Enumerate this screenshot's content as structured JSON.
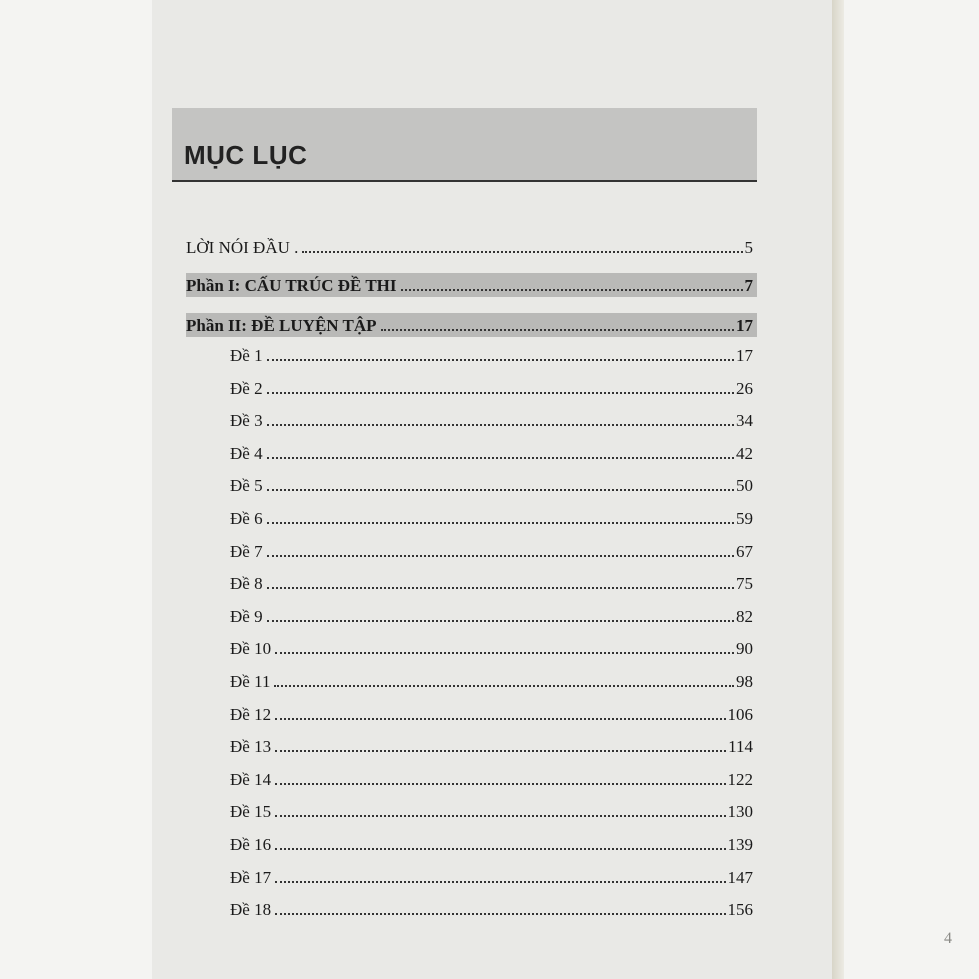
{
  "header": {
    "title": "MỤC LỤC"
  },
  "toc": {
    "entries": [
      {
        "label": "LỜI NÓI ĐẦU .",
        "page": "5"
      },
      {
        "label": "Phần I: CẤU TRÚC ĐỀ THI",
        "page": "7"
      },
      {
        "label": "Phần II: ĐỀ LUYỆN TẬP",
        "page": "17"
      },
      {
        "label": "Đề 1",
        "page": "17"
      },
      {
        "label": "Đề 2",
        "page": "26"
      },
      {
        "label": "Đề 3",
        "page": "34"
      },
      {
        "label": "Đề 4",
        "page": "42"
      },
      {
        "label": "Đề 5",
        "page": "50"
      },
      {
        "label": "Đề 6",
        "page": "59"
      },
      {
        "label": "Đề 7",
        "page": "67"
      },
      {
        "label": "Đề 8",
        "page": "75"
      },
      {
        "label": "Đề 9",
        "page": "82"
      },
      {
        "label": "Đề 10",
        "page": "90"
      },
      {
        "label": "Đề 11",
        "page": "98"
      },
      {
        "label": "Đề 12",
        "page": "106"
      },
      {
        "label": "Đề 13",
        "page": "114"
      },
      {
        "label": "Đề 14",
        "page": "122"
      },
      {
        "label": "Đề 15",
        "page": "130"
      },
      {
        "label": "Đề 16",
        "page": "139"
      },
      {
        "label": "Đề 17",
        "page": "147"
      },
      {
        "label": "Đề 18",
        "page": "156"
      }
    ]
  },
  "footer": {
    "page": "4"
  }
}
